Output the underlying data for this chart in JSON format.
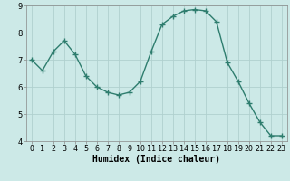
{
  "x": [
    0,
    1,
    2,
    3,
    4,
    5,
    6,
    7,
    8,
    9,
    10,
    11,
    12,
    13,
    14,
    15,
    16,
    17,
    18,
    19,
    20,
    21,
    22,
    23
  ],
  "y": [
    7.0,
    6.6,
    7.3,
    7.7,
    7.2,
    6.4,
    6.0,
    5.8,
    5.7,
    5.8,
    6.2,
    7.3,
    8.3,
    8.6,
    8.8,
    8.85,
    8.8,
    8.4,
    6.9,
    6.2,
    5.4,
    4.7,
    4.2,
    4.2
  ],
  "line_color": "#2e7d6e",
  "marker": "+",
  "marker_size": 4,
  "bg_color": "#cce9e7",
  "grid_color": "#b0d0ce",
  "xlabel": "Humidex (Indice chaleur)",
  "ylim": [
    4,
    9
  ],
  "xlim_min": -0.5,
  "xlim_max": 23.5,
  "yticks": [
    4,
    5,
    6,
    7,
    8,
    9
  ],
  "xticks": [
    0,
    1,
    2,
    3,
    4,
    5,
    6,
    7,
    8,
    9,
    10,
    11,
    12,
    13,
    14,
    15,
    16,
    17,
    18,
    19,
    20,
    21,
    22,
    23
  ],
  "xtick_labels": [
    "0",
    "1",
    "2",
    "3",
    "4",
    "5",
    "6",
    "7",
    "8",
    "9",
    "10",
    "11",
    "12",
    "13",
    "14",
    "15",
    "16",
    "17",
    "18",
    "19",
    "20",
    "21",
    "22",
    "23"
  ],
  "xlabel_fontsize": 7,
  "tick_fontsize": 6,
  "line_width": 1.0,
  "marker_color": "#2e7d6e"
}
